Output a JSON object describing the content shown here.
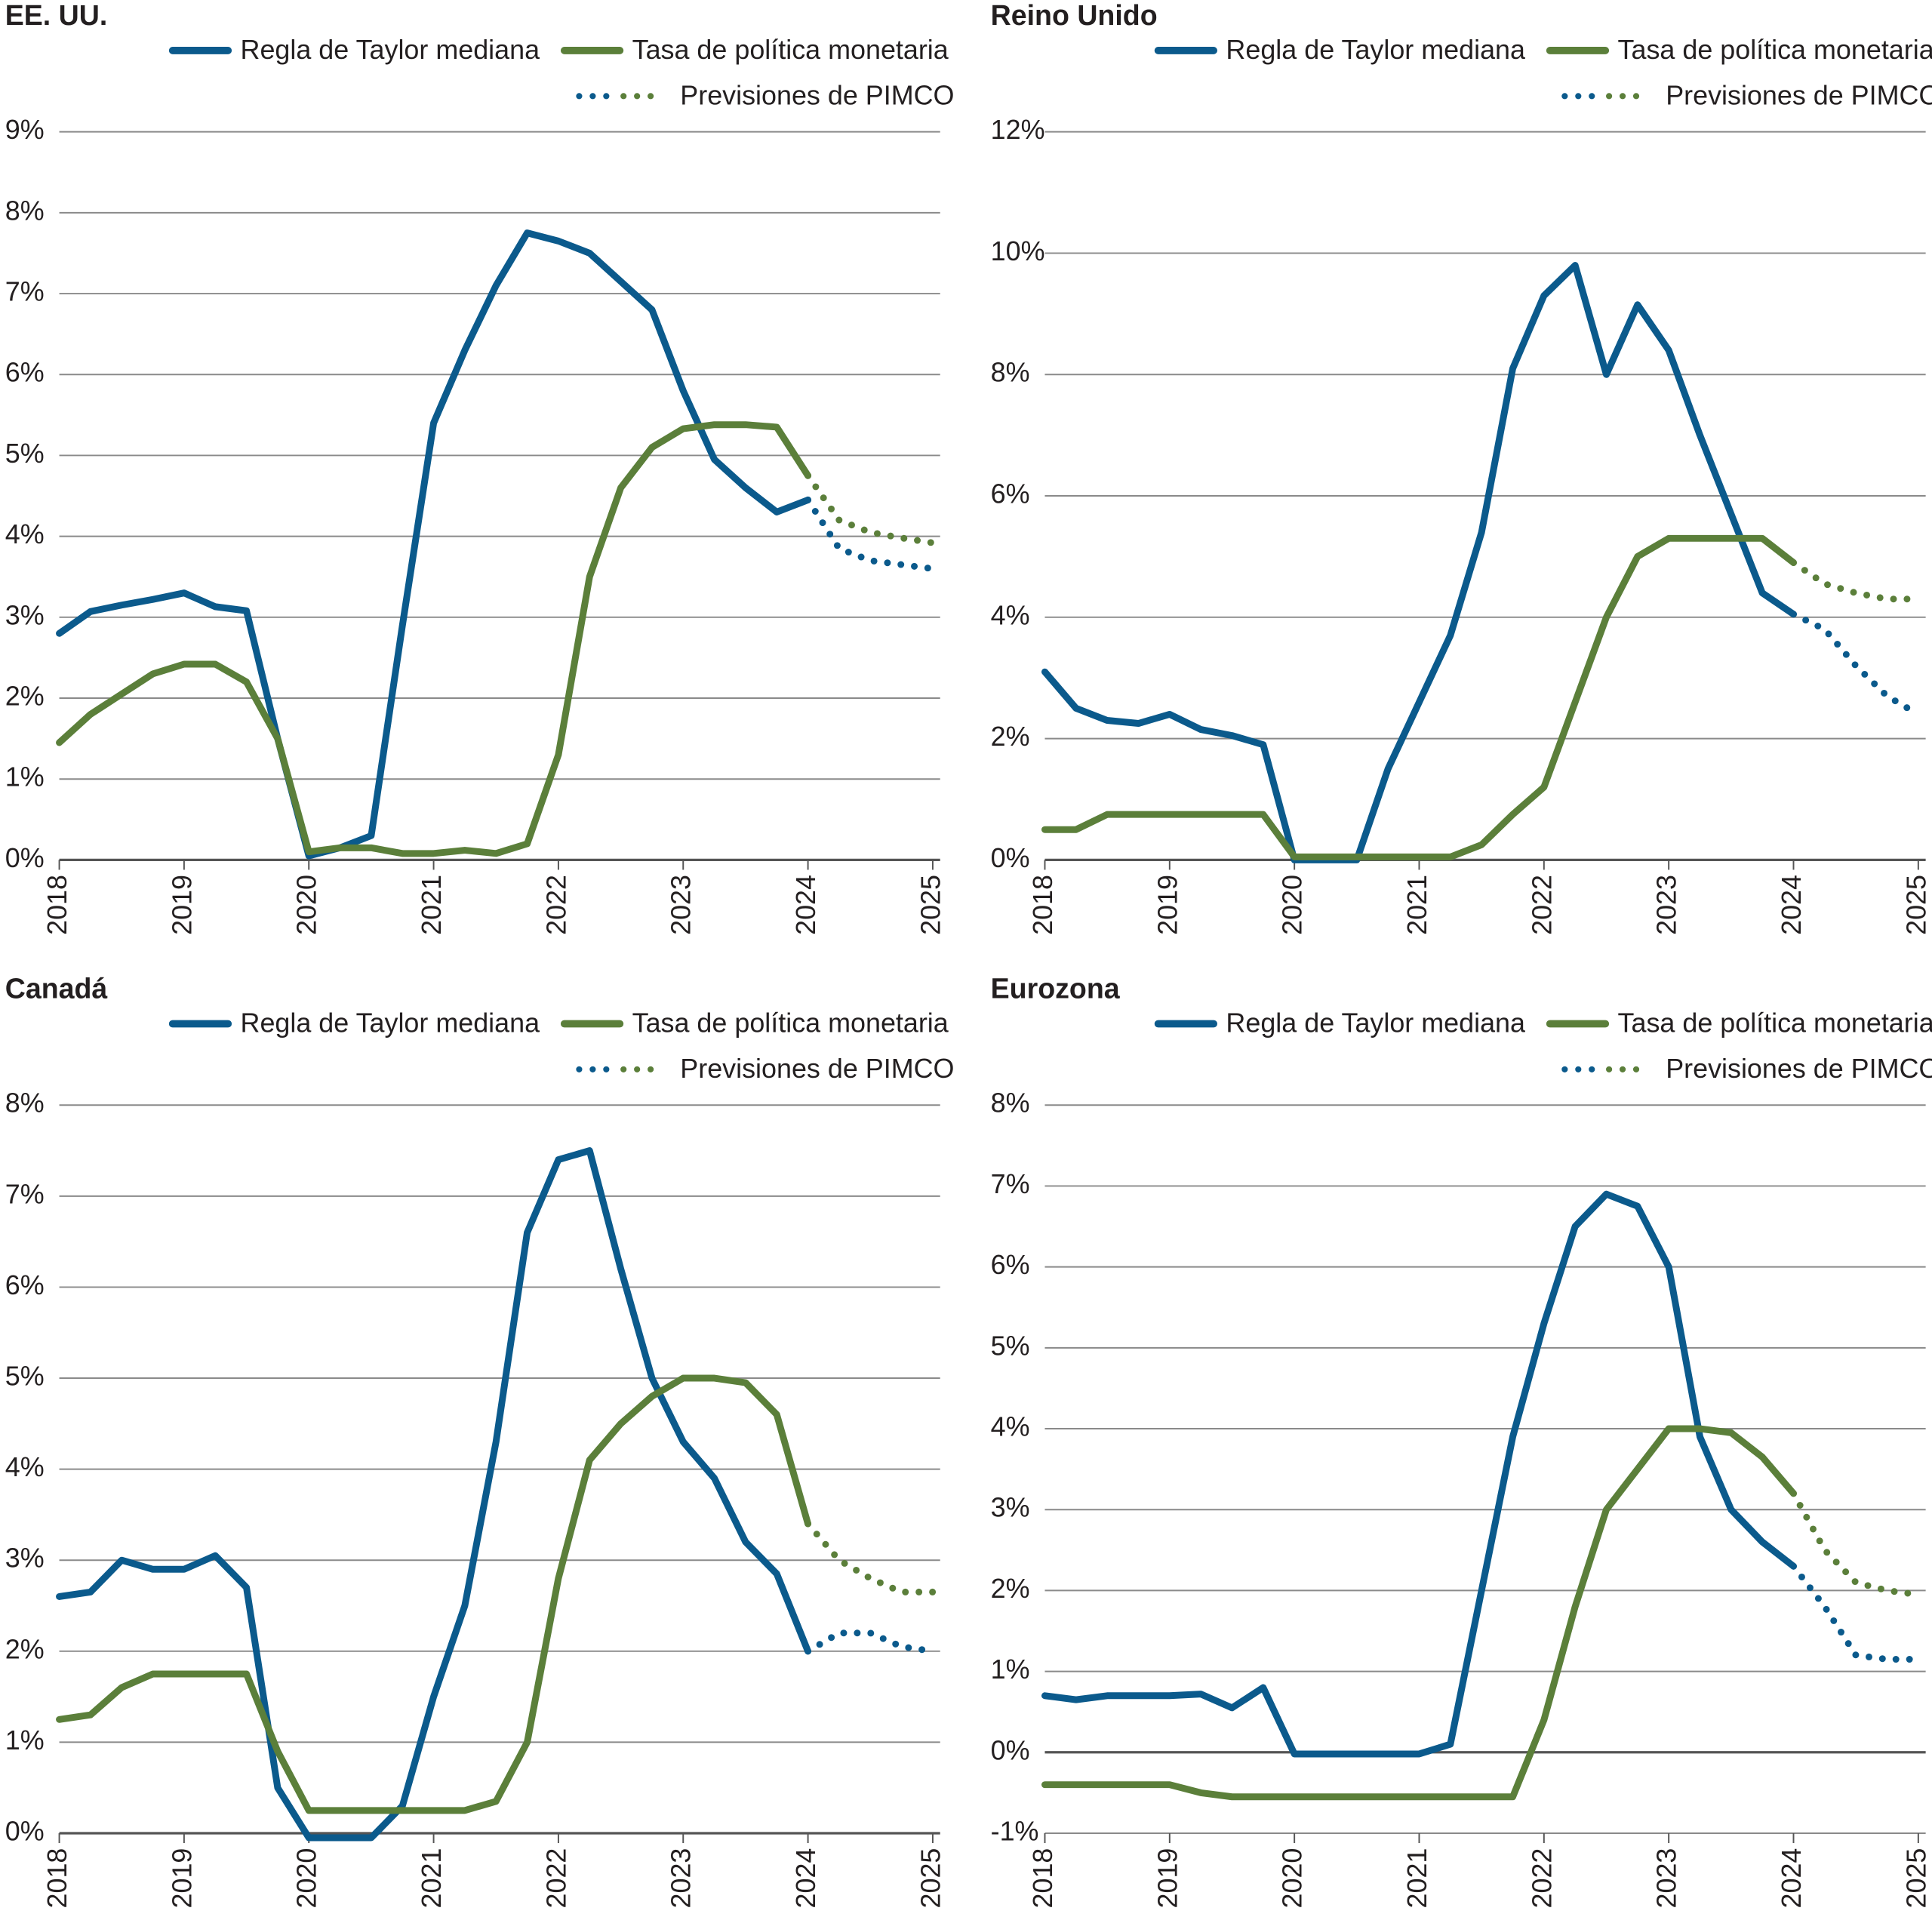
{
  "chart_data": [
    {
      "type": "line",
      "title": "EE. UU.",
      "forecast_label": "Previsiones de PIMCO",
      "x": [
        2018,
        2018.25,
        2018.5,
        2018.75,
        2019,
        2019.25,
        2019.5,
        2019.75,
        2020,
        2020.25,
        2020.5,
        2020.75,
        2021,
        2021.25,
        2021.5,
        2021.75,
        2022,
        2022.25,
        2022.5,
        2022.75,
        2023,
        2023.25,
        2023.5,
        2023.75,
        2024,
        2024.25,
        2024.5,
        2024.75,
        2025
      ],
      "xlim": [
        2018,
        2025
      ],
      "xticks": [
        2018,
        2019,
        2020,
        2021,
        2022,
        2023,
        2024,
        2025
      ],
      "ylim": [
        0,
        9
      ],
      "yticks": [
        {
          "value": 0,
          "label": "0%"
        },
        {
          "value": 1,
          "label": "1%"
        },
        {
          "value": 2,
          "label": "2%"
        },
        {
          "value": 3,
          "label": "3%"
        },
        {
          "value": 4,
          "label": "4%"
        },
        {
          "value": 5,
          "label": "5%"
        },
        {
          "value": 6,
          "label": "6%"
        },
        {
          "value": 7,
          "label": "7%"
        },
        {
          "value": 8,
          "label": "8%"
        },
        {
          "value": 9,
          "label": "9%"
        }
      ],
      "grid": true,
      "series": [
        {
          "name": "Regla de Taylor mediana",
          "color": "#0b5a8c",
          "values": [
            2.8,
            3.07,
            3.15,
            3.22,
            3.3,
            3.13,
            3.08,
            1.5,
            0.05,
            0.15,
            0.3,
            2.9,
            5.4,
            6.3,
            7.1,
            7.75,
            7.65,
            7.5,
            7.15,
            6.8,
            5.8,
            4.95,
            4.6,
            4.3,
            4.45,
            null,
            null,
            null,
            null
          ]
        },
        {
          "name": "Tasa de política monetaria",
          "color": "#5b7f3a",
          "values": [
            1.45,
            1.8,
            2.05,
            2.3,
            2.42,
            2.42,
            2.2,
            1.5,
            0.1,
            0.15,
            0.15,
            0.08,
            0.08,
            0.12,
            0.08,
            0.2,
            1.3,
            3.5,
            4.6,
            5.1,
            5.33,
            5.38,
            5.38,
            5.35,
            4.75,
            null,
            null,
            null,
            null
          ]
        },
        {
          "color": "#0b5a8c",
          "style": "dotted",
          "values": [
            null,
            null,
            null,
            null,
            null,
            null,
            null,
            null,
            null,
            null,
            null,
            null,
            null,
            null,
            null,
            null,
            null,
            null,
            null,
            null,
            null,
            null,
            null,
            null,
            4.45,
            3.85,
            3.7,
            3.65,
            3.6
          ]
        },
        {
          "color": "#5b7f3a",
          "style": "dotted",
          "values": [
            null,
            null,
            null,
            null,
            null,
            null,
            null,
            null,
            null,
            null,
            null,
            null,
            null,
            null,
            null,
            null,
            null,
            null,
            null,
            null,
            null,
            null,
            null,
            null,
            4.75,
            4.2,
            4.05,
            3.98,
            3.92
          ]
        }
      ]
    },
    {
      "type": "line",
      "title": "Reino Unido",
      "forecast_label": "Previsiones de PIMCO",
      "x": [
        2018,
        2018.25,
        2018.5,
        2018.75,
        2019,
        2019.25,
        2019.5,
        2019.75,
        2020,
        2020.25,
        2020.5,
        2020.75,
        2021,
        2021.25,
        2021.5,
        2021.75,
        2022,
        2022.25,
        2022.5,
        2022.75,
        2023,
        2023.25,
        2023.5,
        2023.75,
        2024,
        2024.25,
        2024.5,
        2024.75,
        2025
      ],
      "xlim": [
        2018,
        2025
      ],
      "xticks": [
        2018,
        2019,
        2020,
        2021,
        2022,
        2023,
        2024,
        2025
      ],
      "ylim": [
        0,
        12
      ],
      "yticks": [
        {
          "value": 0,
          "label": "0%"
        },
        {
          "value": 2,
          "label": "2%"
        },
        {
          "value": 4,
          "label": "4%"
        },
        {
          "value": 6,
          "label": "6%"
        },
        {
          "value": 8,
          "label": "8%"
        },
        {
          "value": 10,
          "label": "10%"
        },
        {
          "value": 12,
          "label": "12%"
        }
      ],
      "grid": true,
      "series": [
        {
          "name": "Regla de Taylor mediana",
          "color": "#0b5a8c",
          "values": [
            3.1,
            2.5,
            2.3,
            2.25,
            2.4,
            2.15,
            2.05,
            1.9,
            0,
            0,
            0,
            1.5,
            2.6,
            3.7,
            5.4,
            8.1,
            9.3,
            9.8,
            8.0,
            9.15,
            8.4,
            7.0,
            5.7,
            4.4,
            4.05,
            null,
            null,
            null,
            null
          ]
        },
        {
          "name": "Tasa de política monetaria",
          "color": "#5b7f3a",
          "values": [
            0.5,
            0.5,
            0.75,
            0.75,
            0.75,
            0.75,
            0.75,
            0.75,
            0.05,
            0.05,
            0.05,
            0.05,
            0.05,
            0.05,
            0.25,
            0.75,
            1.2,
            2.6,
            4.0,
            5.0,
            5.3,
            5.3,
            5.3,
            5.3,
            4.9,
            null,
            null,
            null,
            null
          ]
        },
        {
          "color": "#0b5a8c",
          "style": "dotted",
          "values": [
            null,
            null,
            null,
            null,
            null,
            null,
            null,
            null,
            null,
            null,
            null,
            null,
            null,
            null,
            null,
            null,
            null,
            null,
            null,
            null,
            null,
            null,
            null,
            null,
            4.05,
            3.8,
            3.2,
            2.7,
            2.4
          ]
        },
        {
          "color": "#5b7f3a",
          "style": "dotted",
          "values": [
            null,
            null,
            null,
            null,
            null,
            null,
            null,
            null,
            null,
            null,
            null,
            null,
            null,
            null,
            null,
            null,
            null,
            null,
            null,
            null,
            null,
            null,
            null,
            null,
            4.9,
            4.55,
            4.4,
            4.3,
            4.3
          ]
        }
      ]
    },
    {
      "type": "line",
      "title": "Canadá",
      "forecast_label": "Previsiones de PIMCO",
      "x": [
        2018,
        2018.25,
        2018.5,
        2018.75,
        2019,
        2019.25,
        2019.5,
        2019.75,
        2020,
        2020.25,
        2020.5,
        2020.75,
        2021,
        2021.25,
        2021.5,
        2021.75,
        2022,
        2022.25,
        2022.5,
        2022.75,
        2023,
        2023.25,
        2023.5,
        2023.75,
        2024,
        2024.25,
        2024.5,
        2024.75,
        2025
      ],
      "xlim": [
        2018,
        2025
      ],
      "xticks": [
        2018,
        2019,
        2020,
        2021,
        2022,
        2023,
        2024,
        2025
      ],
      "ylim": [
        0,
        8
      ],
      "yticks": [
        {
          "value": 0,
          "label": "0%"
        },
        {
          "value": 1,
          "label": "1%"
        },
        {
          "value": 2,
          "label": "2%"
        },
        {
          "value": 3,
          "label": "3%"
        },
        {
          "value": 4,
          "label": "4%"
        },
        {
          "value": 5,
          "label": "5%"
        },
        {
          "value": 6,
          "label": "6%"
        },
        {
          "value": 7,
          "label": "7%"
        },
        {
          "value": 8,
          "label": "8%"
        }
      ],
      "grid": true,
      "series": [
        {
          "name": "Regla de Taylor mediana",
          "color": "#0b5a8c",
          "values": [
            2.6,
            2.65,
            3.0,
            2.9,
            2.9,
            3.05,
            2.7,
            0.5,
            -0.05,
            -0.05,
            -0.05,
            0.3,
            1.5,
            2.5,
            4.3,
            6.6,
            7.4,
            7.5,
            6.2,
            5.0,
            4.3,
            3.9,
            3.2,
            2.85,
            2.0,
            null,
            null,
            null,
            null
          ]
        },
        {
          "name": "Tasa de política monetaria",
          "color": "#5b7f3a",
          "values": [
            1.25,
            1.3,
            1.6,
            1.75,
            1.75,
            1.75,
            1.75,
            0.9,
            0.25,
            0.25,
            0.25,
            0.25,
            0.25,
            0.25,
            0.35,
            1.0,
            2.8,
            4.1,
            4.5,
            4.8,
            5.0,
            5.0,
            4.95,
            4.6,
            3.4,
            null,
            null,
            null,
            null
          ]
        },
        {
          "color": "#0b5a8c",
          "style": "dotted",
          "values": [
            null,
            null,
            null,
            null,
            null,
            null,
            null,
            null,
            null,
            null,
            null,
            null,
            null,
            null,
            null,
            null,
            null,
            null,
            null,
            null,
            null,
            null,
            null,
            null,
            2.0,
            2.2,
            2.2,
            2.05,
            2.0
          ]
        },
        {
          "color": "#5b7f3a",
          "style": "dotted",
          "values": [
            null,
            null,
            null,
            null,
            null,
            null,
            null,
            null,
            null,
            null,
            null,
            null,
            null,
            null,
            null,
            null,
            null,
            null,
            null,
            null,
            null,
            null,
            null,
            null,
            3.4,
            3.0,
            2.8,
            2.65,
            2.65
          ]
        }
      ]
    },
    {
      "type": "line",
      "title": "Eurozona",
      "forecast_label": "Previsiones de PIMCO",
      "x": [
        2018,
        2018.25,
        2018.5,
        2018.75,
        2019,
        2019.25,
        2019.5,
        2019.75,
        2020,
        2020.25,
        2020.5,
        2020.75,
        2021,
        2021.25,
        2021.5,
        2021.75,
        2022,
        2022.25,
        2022.5,
        2022.75,
        2023,
        2023.25,
        2023.5,
        2023.75,
        2024,
        2024.25,
        2024.5,
        2024.75,
        2025
      ],
      "xlim": [
        2018,
        2025
      ],
      "xticks": [
        2018,
        2019,
        2020,
        2021,
        2022,
        2023,
        2024,
        2025
      ],
      "ylim": [
        -1,
        8
      ],
      "yticks": [
        {
          "value": -1,
          "label": "-1%"
        },
        {
          "value": 0,
          "label": "0%"
        },
        {
          "value": 1,
          "label": "1%"
        },
        {
          "value": 2,
          "label": "2%"
        },
        {
          "value": 3,
          "label": "3%"
        },
        {
          "value": 4,
          "label": "4%"
        },
        {
          "value": 5,
          "label": "5%"
        },
        {
          "value": 6,
          "label": "6%"
        },
        {
          "value": 7,
          "label": "7%"
        },
        {
          "value": 8,
          "label": "8%"
        }
      ],
      "grid": true,
      "series": [
        {
          "name": "Regla de Taylor mediana",
          "color": "#0b5a8c",
          "values": [
            0.7,
            0.65,
            0.7,
            0.7,
            0.7,
            0.72,
            0.55,
            0.8,
            -0.02,
            -0.02,
            -0.02,
            -0.02,
            -0.02,
            0.1,
            2.0,
            3.9,
            5.3,
            6.5,
            6.9,
            6.75,
            6.0,
            3.9,
            3.0,
            2.6,
            2.3,
            null,
            null,
            null,
            null
          ]
        },
        {
          "name": "Tasa de política monetaria",
          "color": "#5b7f3a",
          "values": [
            -0.4,
            -0.4,
            -0.4,
            -0.4,
            -0.4,
            -0.5,
            -0.55,
            -0.55,
            -0.55,
            -0.55,
            -0.55,
            -0.55,
            -0.55,
            -0.55,
            -0.55,
            -0.55,
            0.4,
            1.8,
            3.0,
            3.5,
            4.0,
            4.0,
            3.95,
            3.65,
            3.2,
            null,
            null,
            null,
            null
          ]
        },
        {
          "color": "#0b5a8c",
          "style": "dotted",
          "values": [
            null,
            null,
            null,
            null,
            null,
            null,
            null,
            null,
            null,
            null,
            null,
            null,
            null,
            null,
            null,
            null,
            null,
            null,
            null,
            null,
            null,
            null,
            null,
            null,
            2.3,
            1.8,
            1.2,
            1.15,
            1.15
          ]
        },
        {
          "color": "#5b7f3a",
          "style": "dotted",
          "values": [
            null,
            null,
            null,
            null,
            null,
            null,
            null,
            null,
            null,
            null,
            null,
            null,
            null,
            null,
            null,
            null,
            null,
            null,
            null,
            null,
            null,
            null,
            null,
            null,
            3.2,
            2.5,
            2.1,
            2.0,
            1.95
          ]
        }
      ]
    }
  ]
}
